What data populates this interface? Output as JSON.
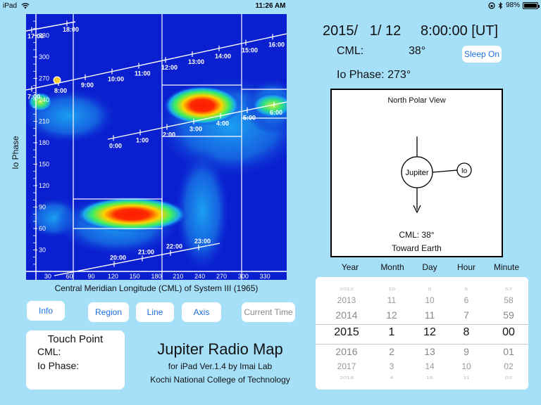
{
  "status": {
    "device": "iPad",
    "time": "11:26 AM",
    "battery": "98%",
    "battery_level": 0.98
  },
  "map": {
    "ylabel": "Io Phase",
    "xlabel": "Central Meridian Longitude (CML) of System III (1965)",
    "y_ticks": [
      "30",
      "60",
      "90",
      "120",
      "150",
      "180",
      "210",
      "240",
      "270",
      "300",
      "330"
    ],
    "x_ticks": [
      "30",
      "60",
      "90",
      "120",
      "150",
      "180",
      "210",
      "240",
      "270",
      "300",
      "330"
    ],
    "time_labels_line1": [
      "7:00",
      "8:00",
      "9:00",
      "10:00",
      "11:00",
      "12:00",
      "13:00",
      "14:00",
      "15:00",
      "16:00"
    ],
    "time_labels_line2": [
      "0:00",
      "1:00",
      "2:00",
      "3:00",
      "4:00",
      "5:00",
      "6:00"
    ],
    "time_labels_line3": [
      "20:00",
      "21:00",
      "22:00",
      "23:00"
    ],
    "time_labels_top": [
      "17:00",
      "18:00"
    ]
  },
  "buttons": {
    "info": "Info",
    "region": "Region",
    "line": "Line",
    "axis": "Axis",
    "current_time": "Current Time",
    "sleep": "Sleep On"
  },
  "touch_point": {
    "title": "Touch Point",
    "cml_label": "CML:",
    "io_label": "Io Phase:"
  },
  "app": {
    "title": "Jupiter Radio Map",
    "subtitle": "for iPad  Ver.1.4  by Imai Lab",
    "org": "Kochi National College of Technology"
  },
  "readout": {
    "datetime": "2015/   1/ 12     8:00:00 [UT]",
    "cml_label": "CML:",
    "cml_value": "38°",
    "io_label": "Io Phase:",
    "io_value": "273°"
  },
  "polar": {
    "title": "North Polar View",
    "jupiter": "Jupiter",
    "io": "Io",
    "cml": "CML:   38°",
    "toward": "Toward Earth"
  },
  "picker": {
    "headers": [
      "Year",
      "Month",
      "Day",
      "Hour",
      "Minute"
    ],
    "columns": [
      [
        "2012",
        "2013",
        "2014",
        "2015",
        "2016",
        "2017",
        "2018"
      ],
      [
        "10",
        "11",
        "12",
        "1",
        "2",
        "3",
        "4"
      ],
      [
        "9",
        "10",
        "11",
        "12",
        "13",
        "14",
        "15"
      ],
      [
        "5",
        "6",
        "7",
        "8",
        "9",
        "10",
        "11"
      ],
      [
        "57",
        "58",
        "59",
        "00",
        "01",
        "02",
        "03"
      ]
    ]
  }
}
